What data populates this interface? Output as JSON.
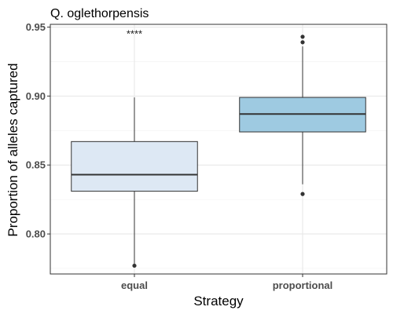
{
  "chart_data": {
    "type": "box",
    "title": "Q. oglethorpensis",
    "xlabel": "Strategy",
    "ylabel": "Proportion of alleles captured",
    "ylim": [
      0.771,
      0.952
    ],
    "y_ticks": [
      0.8,
      0.85,
      0.9,
      0.95
    ],
    "y_tick_labels": [
      "0.80",
      "0.85",
      "0.90",
      "0.95"
    ],
    "grid": true,
    "categories": [
      "equal",
      "proportional"
    ],
    "boxes": [
      {
        "category": "equal",
        "whisker_low": 0.778,
        "q1": 0.831,
        "median": 0.843,
        "q3": 0.867,
        "whisker_high": 0.899,
        "outliers": [
          0.777
        ],
        "fill": "#dde8f4"
      },
      {
        "category": "proportional",
        "whisker_low": 0.836,
        "q1": 0.874,
        "median": 0.887,
        "q3": 0.899,
        "whisker_high": 0.936,
        "outliers": [
          0.943,
          0.939,
          0.829
        ],
        "fill": "#9ecae1"
      }
    ],
    "annotations": [
      {
        "text": "****",
        "x": "equal",
        "y": 0.946
      }
    ]
  }
}
